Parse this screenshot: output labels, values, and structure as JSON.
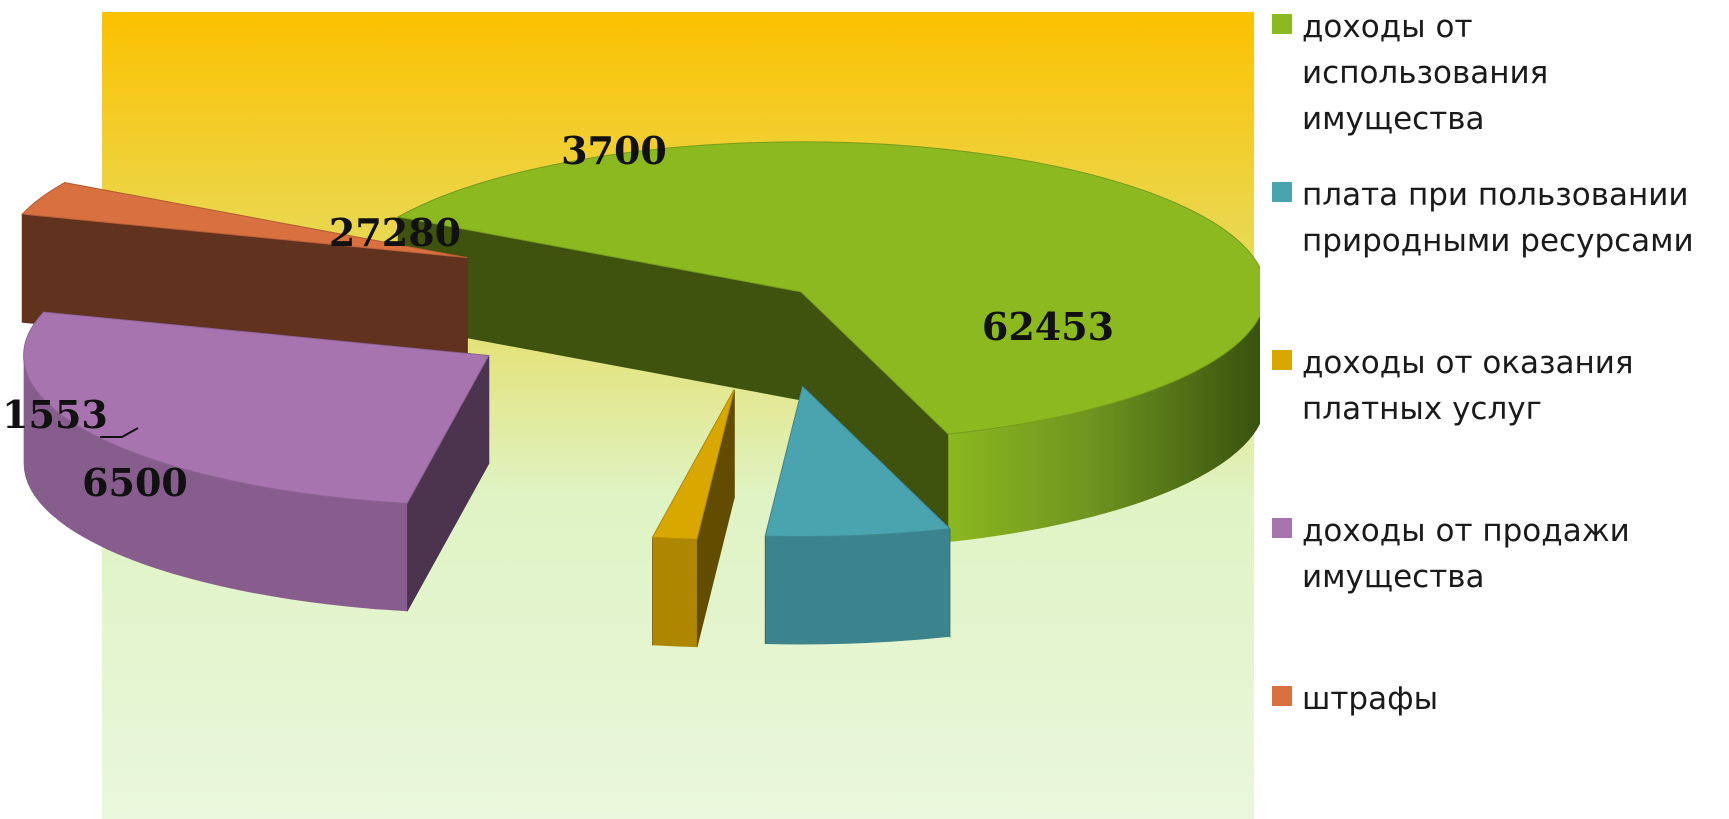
{
  "chart_data": {
    "type": "pie",
    "title": "",
    "three_d": true,
    "exploded": true,
    "background": "gradient",
    "legend_placement": "right",
    "slices": [
      {
        "label": "доходы от использования имущества",
        "value": 62453,
        "color": "#8cb820"
      },
      {
        "label": "плата при пользовании природными ресурсами",
        "value": 6500,
        "color": "#4aa4b0"
      },
      {
        "label": "доходы от оказания платных услуг",
        "value": 1553,
        "color": "#d9a800"
      },
      {
        "label": "доходы от продажи имущества",
        "value": 27280,
        "color": "#a874b0"
      },
      {
        "label": "штрафы",
        "value": 3700,
        "color": "#d87040"
      }
    ],
    "data_labels": [
      "62453",
      "6500",
      "1553",
      "27280",
      "3700"
    ]
  },
  "legend": {
    "items": [
      {
        "label": "доходы от использования имущества",
        "color": "#8cb820"
      },
      {
        "label": "плата при пользовании природными ресурсами",
        "color": "#4aa4b0"
      },
      {
        "label": "доходы от оказания платных услуг",
        "color": "#d9a800"
      },
      {
        "label": "доходы от продажи имущества",
        "color": "#a874b0"
      },
      {
        "label": "штрафы",
        "color": "#d87040"
      }
    ]
  },
  "colors": {
    "background_top": "#fcc100",
    "background_middle": "#dfe7a4",
    "background_bottom": "#eaf7dc"
  }
}
